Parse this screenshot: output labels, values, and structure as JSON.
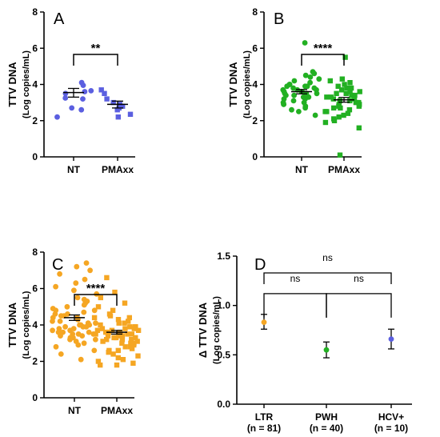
{
  "chart_data": [
    {
      "panel": "A",
      "type": "scatter",
      "categories": [
        "NT",
        "PMAxx"
      ],
      "ylabel": "TTV DNA",
      "ylabel_sub": "(Log copies/mL)",
      "ylim": [
        0,
        8
      ],
      "yticks": [
        "0",
        "2",
        "4",
        "6",
        "8"
      ],
      "colors": [
        "#5b5fe0",
        "#5b5fe0"
      ],
      "markers": [
        "circle",
        "square"
      ],
      "series": [
        {
          "category": "NT",
          "mean": 3.55,
          "sem_low": 3.3,
          "sem_high": 3.78,
          "values": [
            4.1,
            3.95,
            3.65,
            3.6,
            3.5,
            3.25,
            3.2,
            2.7,
            2.6,
            2.2
          ]
        },
        {
          "category": "PMAxx",
          "mean": 2.9,
          "sem_low": 2.7,
          "sem_high": 3.08,
          "values": [
            3.7,
            3.5,
            3.2,
            3.0,
            2.9,
            2.8,
            2.7,
            2.6,
            2.35,
            2.2
          ]
        }
      ],
      "significance": [
        {
          "from": 0,
          "to": 1,
          "label": "**"
        }
      ]
    },
    {
      "panel": "B",
      "type": "scatter",
      "categories": [
        "NT",
        "PMAxx"
      ],
      "ylabel": "TTV DNA",
      "ylabel_sub": "(Log copies/mL)",
      "ylim": [
        0,
        8
      ],
      "yticks": [
        "0",
        "2",
        "4",
        "6",
        "8"
      ],
      "colors": [
        "#22b022",
        "#22b022"
      ],
      "markers": [
        "circle",
        "square"
      ],
      "series": [
        {
          "category": "NT",
          "mean": 3.6,
          "sem_low": 3.48,
          "sem_high": 3.72,
          "values": [
            6.3,
            4.7,
            4.5,
            4.4,
            4.3,
            4.2,
            4.1,
            4.0,
            4.0,
            3.9,
            3.9,
            3.8,
            3.8,
            3.7,
            3.7,
            3.6,
            3.6,
            3.6,
            3.5,
            3.5,
            3.4,
            3.4,
            3.3,
            3.3,
            3.2,
            3.2,
            3.1,
            3.0,
            3.0,
            2.9,
            2.8,
            2.7,
            2.6,
            2.5,
            2.3,
            3.5,
            3.9,
            4.6,
            3.7,
            2.9
          ]
        },
        {
          "category": "PMAxx",
          "mean": 3.15,
          "sem_low": 3.02,
          "sem_high": 3.28,
          "values": [
            5.5,
            4.3,
            4.2,
            4.1,
            4.0,
            3.9,
            3.8,
            3.7,
            3.6,
            3.5,
            3.5,
            3.4,
            3.3,
            3.3,
            3.2,
            3.2,
            3.1,
            3.1,
            3.0,
            3.0,
            2.9,
            2.9,
            2.8,
            2.7,
            2.7,
            2.6,
            2.5,
            2.4,
            2.3,
            2.2,
            2.1,
            2.0,
            1.9,
            1.6,
            0.1,
            3.6,
            3.4,
            2.8,
            3.8,
            2.5
          ]
        }
      ],
      "significance": [
        {
          "from": 0,
          "to": 1,
          "label": "****"
        }
      ]
    },
    {
      "panel": "C",
      "type": "scatter",
      "categories": [
        "NT",
        "PMAxx"
      ],
      "ylabel": "TTV DNA",
      "ylabel_sub": "(Log copies/mL)",
      "ylim": [
        0,
        8
      ],
      "yticks": [
        "0",
        "2",
        "4",
        "6",
        "8"
      ],
      "colors": [
        "#f5a623",
        "#f5a623"
      ],
      "markers": [
        "circle",
        "square"
      ],
      "series": [
        {
          "category": "NT",
          "mean": 4.4,
          "sem_low": 4.25,
          "sem_high": 4.55,
          "values": [
            7.4,
            7.2,
            7.0,
            6.8,
            6.5,
            6.3,
            6.1,
            5.9,
            5.7,
            5.5,
            5.4,
            5.2,
            5.1,
            5.0,
            4.9,
            4.8,
            4.7,
            4.6,
            4.5,
            4.5,
            4.4,
            4.3,
            4.3,
            4.2,
            4.2,
            4.1,
            4.0,
            4.0,
            3.9,
            3.9,
            3.8,
            3.8,
            3.7,
            3.7,
            3.6,
            3.6,
            3.5,
            3.5,
            3.4,
            3.4,
            3.3,
            3.3,
            3.2,
            3.1,
            3.0,
            2.9,
            2.8,
            2.6,
            2.4,
            2.1,
            4.6,
            3.9,
            4.1,
            3.6,
            5.3,
            4.8,
            3.2,
            3.5,
            4.4,
            4.0
          ]
        },
        {
          "category": "PMAxx",
          "mean": 3.6,
          "sem_low": 3.5,
          "sem_high": 3.7,
          "values": [
            6.6,
            5.8,
            5.5,
            5.2,
            5.0,
            4.8,
            4.6,
            4.5,
            4.4,
            4.3,
            4.2,
            4.1,
            4.0,
            3.9,
            3.9,
            3.8,
            3.8,
            3.7,
            3.7,
            3.6,
            3.6,
            3.5,
            3.5,
            3.5,
            3.4,
            3.4,
            3.3,
            3.3,
            3.2,
            3.2,
            3.1,
            3.1,
            3.0,
            3.0,
            2.9,
            2.8,
            2.7,
            2.6,
            2.5,
            2.4,
            2.3,
            2.2,
            2.1,
            2.0,
            1.9,
            1.8,
            1.8,
            3.6,
            3.4,
            3.9,
            3.2,
            4.1,
            2.8,
            3.7,
            3.0,
            3.5,
            2.6,
            3.3,
            4.4,
            3.8
          ]
        }
      ],
      "significance": [
        {
          "from": 0,
          "to": 1,
          "label": "****"
        }
      ]
    },
    {
      "panel": "D",
      "type": "scatter",
      "categories": [
        "LTR",
        "PWH",
        "HCV+"
      ],
      "category_sublabels": [
        "(n = 81)",
        "(n = 40)",
        "(n = 10)"
      ],
      "ylabel": "Δ TTV DNA",
      "ylabel_sub": "(Log copies/mL)",
      "ylim": [
        0,
        1.5
      ],
      "yticks": [
        "0.0",
        "0.5",
        "1.0",
        "1.5"
      ],
      "colors": [
        "#f5a623",
        "#22b022",
        "#5b5fe0"
      ],
      "series": [
        {
          "category": "LTR",
          "mean": 0.83,
          "err_low": 0.76,
          "err_high": 0.91
        },
        {
          "category": "PWH",
          "mean": 0.55,
          "err_low": 0.47,
          "err_high": 0.63
        },
        {
          "category": "HCV+",
          "mean": 0.66,
          "err_low": 0.56,
          "err_high": 0.76
        }
      ],
      "significance": [
        {
          "from": 0,
          "to": 1,
          "label": "ns",
          "level": 1.12
        },
        {
          "from": 1,
          "to": 2,
          "label": "ns",
          "level": 1.12
        },
        {
          "from": 0,
          "to": 2,
          "label": "ns",
          "level": 1.33
        }
      ]
    }
  ]
}
